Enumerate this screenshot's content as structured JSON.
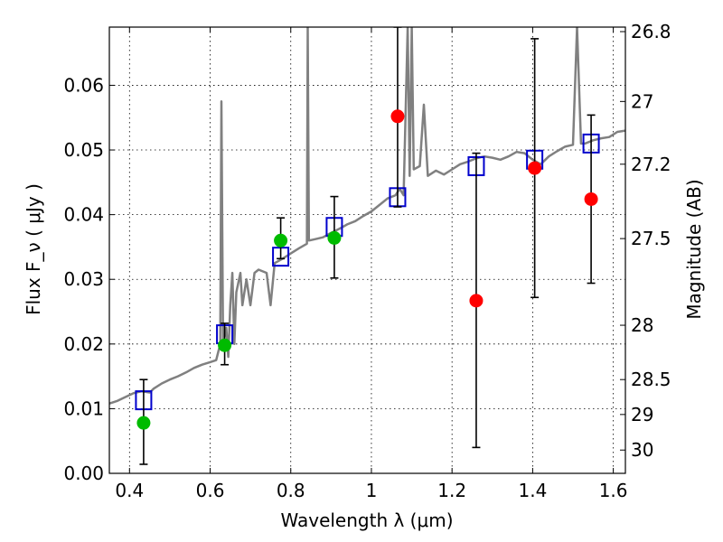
{
  "chart_data": {
    "type": "scatter",
    "xlabel": "Wavelength λ (μm)",
    "ylabel": "Flux F_ν ( μJy )",
    "ylabel_right": "Magnitude (AB)",
    "xlim": [
      0.35,
      1.63
    ],
    "ylim": [
      0.0,
      0.069
    ],
    "x_ticks": [
      0.4,
      0.6,
      0.8,
      1.0,
      1.2,
      1.4,
      1.6
    ],
    "x_tick_labels": [
      "0.4",
      "0.6",
      "0.8",
      "1",
      "1.2",
      "1.4",
      "1.6"
    ],
    "y_ticks": [
      0.0,
      0.01,
      0.02,
      0.03,
      0.04,
      0.05,
      0.06
    ],
    "y_tick_labels": [
      "0.00",
      "0.01",
      "0.02",
      "0.03",
      "0.04",
      "0.05",
      "0.06"
    ],
    "right_ticks": [
      {
        "flux": 0.0683,
        "label": "26.8"
      },
      {
        "flux": 0.0575,
        "label": "27"
      },
      {
        "flux": 0.0478,
        "label": "27.2"
      },
      {
        "flux": 0.0363,
        "label": "27.5"
      },
      {
        "flux": 0.0229,
        "label": "28"
      },
      {
        "flux": 0.0145,
        "label": "28.5"
      },
      {
        "flux": 0.0091,
        "label": "29"
      },
      {
        "flux": 0.0036,
        "label": "30"
      }
    ],
    "grid": true,
    "colors": {
      "model_line": "#808080",
      "model_box": "#0000cc",
      "detected": "#00bb00",
      "nondetected": "#ff0000",
      "errorbar": "#000000"
    },
    "series": [
      {
        "marker": "line",
        "color": "#808080",
        "points": [
          [
            0.35,
            0.0108
          ],
          [
            0.37,
            0.0112
          ],
          [
            0.39,
            0.0118
          ],
          [
            0.41,
            0.0124
          ],
          [
            0.43,
            0.0127
          ],
          [
            0.45,
            0.0125
          ],
          [
            0.46,
            0.0131
          ],
          [
            0.48,
            0.0139
          ],
          [
            0.5,
            0.0145
          ],
          [
            0.52,
            0.015
          ],
          [
            0.54,
            0.0156
          ],
          [
            0.56,
            0.0163
          ],
          [
            0.58,
            0.0168
          ],
          [
            0.6,
            0.0172
          ],
          [
            0.615,
            0.0175
          ],
          [
            0.625,
            0.02
          ],
          [
            0.628,
            0.0575
          ],
          [
            0.632,
            0.02
          ],
          [
            0.64,
            0.0225
          ],
          [
            0.645,
            0.018
          ],
          [
            0.65,
            0.026
          ],
          [
            0.655,
            0.031
          ],
          [
            0.66,
            0.02
          ],
          [
            0.665,
            0.028
          ],
          [
            0.675,
            0.031
          ],
          [
            0.68,
            0.026
          ],
          [
            0.69,
            0.03
          ],
          [
            0.7,
            0.026
          ],
          [
            0.71,
            0.031
          ],
          [
            0.72,
            0.0315
          ],
          [
            0.74,
            0.031
          ],
          [
            0.75,
            0.026
          ],
          [
            0.76,
            0.0325
          ],
          [
            0.78,
            0.0332
          ],
          [
            0.8,
            0.034
          ],
          [
            0.82,
            0.0348
          ],
          [
            0.84,
            0.0355
          ],
          [
            0.842,
            0.069
          ],
          [
            0.845,
            0.036
          ],
          [
            0.86,
            0.0362
          ],
          [
            0.88,
            0.0365
          ],
          [
            0.9,
            0.0372
          ],
          [
            0.92,
            0.0378
          ],
          [
            0.94,
            0.0385
          ],
          [
            0.96,
            0.039
          ],
          [
            0.98,
            0.0398
          ],
          [
            1.0,
            0.0405
          ],
          [
            1.02,
            0.0415
          ],
          [
            1.04,
            0.0425
          ],
          [
            1.06,
            0.043
          ],
          [
            1.07,
            0.044
          ],
          [
            1.08,
            0.043
          ],
          [
            1.09,
            0.069
          ],
          [
            1.095,
            0.046
          ],
          [
            1.1,
            0.069
          ],
          [
            1.105,
            0.047
          ],
          [
            1.12,
            0.0475
          ],
          [
            1.13,
            0.057
          ],
          [
            1.14,
            0.046
          ],
          [
            1.16,
            0.0468
          ],
          [
            1.18,
            0.0462
          ],
          [
            1.2,
            0.047
          ],
          [
            1.22,
            0.0478
          ],
          [
            1.24,
            0.0482
          ],
          [
            1.26,
            0.0487
          ],
          [
            1.28,
            0.049
          ],
          [
            1.3,
            0.0488
          ],
          [
            1.32,
            0.0485
          ],
          [
            1.34,
            0.049
          ],
          [
            1.36,
            0.0497
          ],
          [
            1.38,
            0.0495
          ],
          [
            1.4,
            0.0485
          ],
          [
            1.42,
            0.0478
          ],
          [
            1.44,
            0.049
          ],
          [
            1.46,
            0.0498
          ],
          [
            1.48,
            0.0505
          ],
          [
            1.5,
            0.0508
          ],
          [
            1.51,
            0.069
          ],
          [
            1.52,
            0.051
          ],
          [
            1.53,
            0.051
          ],
          [
            1.55,
            0.0515
          ],
          [
            1.57,
            0.0518
          ],
          [
            1.59,
            0.052
          ],
          [
            1.61,
            0.0528
          ],
          [
            1.63,
            0.053
          ]
        ]
      },
      {
        "marker": "open-square",
        "color": "#0000cc",
        "points": [
          [
            0.435,
            0.0113
          ],
          [
            0.636,
            0.0215
          ],
          [
            0.775,
            0.0335
          ],
          [
            0.908,
            0.0381
          ],
          [
            1.065,
            0.0427
          ],
          [
            1.26,
            0.0475
          ],
          [
            1.405,
            0.0485
          ],
          [
            1.545,
            0.051
          ]
        ]
      },
      {
        "marker": "filled-circle",
        "color": "#00bb00",
        "points": [
          [
            0.435,
            0.0078
          ],
          [
            0.636,
            0.0198
          ],
          [
            0.775,
            0.036
          ],
          [
            0.908,
            0.0364
          ]
        ],
        "yerr": [
          [
            0.0014,
            0.0145
          ],
          [
            0.0168,
            0.0232
          ],
          [
            0.0332,
            0.0395
          ],
          [
            0.0302,
            0.0428
          ]
        ]
      },
      {
        "marker": "filled-circle",
        "color": "#ff0000",
        "points": [
          [
            1.065,
            0.0552
          ],
          [
            1.26,
            0.0267
          ],
          [
            1.405,
            0.0472
          ],
          [
            1.545,
            0.0424
          ]
        ],
        "yerr": [
          [
            0.0412,
            0.069
          ],
          [
            0.004,
            0.0495
          ],
          [
            0.0272,
            0.0672
          ],
          [
            0.0294,
            0.0554
          ]
        ]
      }
    ]
  }
}
